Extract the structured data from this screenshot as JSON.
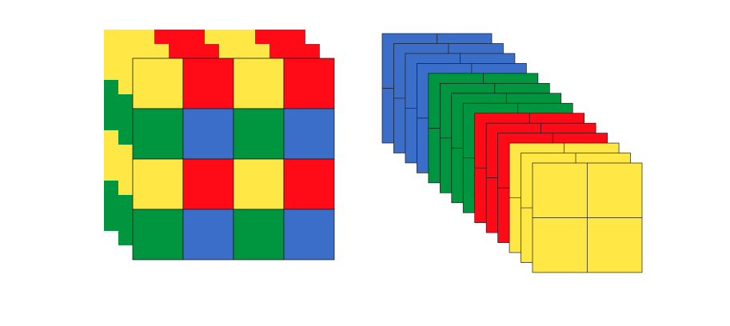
{
  "colors": {
    "yellow": "#ffe845",
    "red": "#ff0a16",
    "green": "#00953f",
    "blue": "#3a6ec8",
    "outline": "#1a1a1a",
    "background": "#ffffff"
  },
  "figures": [
    {
      "id": "mixed-stack",
      "description_free": true,
      "layer_count": 3,
      "grid_rows": 4,
      "grid_cols": 4,
      "pattern": [
        [
          "yellow",
          "red",
          "yellow",
          "red"
        ],
        [
          "green",
          "blue",
          "green",
          "blue"
        ],
        [
          "yellow",
          "red",
          "yellow",
          "red"
        ],
        [
          "green",
          "blue",
          "green",
          "blue"
        ]
      ]
    },
    {
      "id": "sorted-stack",
      "grid_rows": 2,
      "grid_cols": 2,
      "layers_back_to_front": [
        "blue",
        "blue",
        "blue",
        "blue",
        "green",
        "green",
        "green",
        "green",
        "red",
        "red",
        "red",
        "yellow",
        "yellow",
        "yellow"
      ]
    }
  ]
}
